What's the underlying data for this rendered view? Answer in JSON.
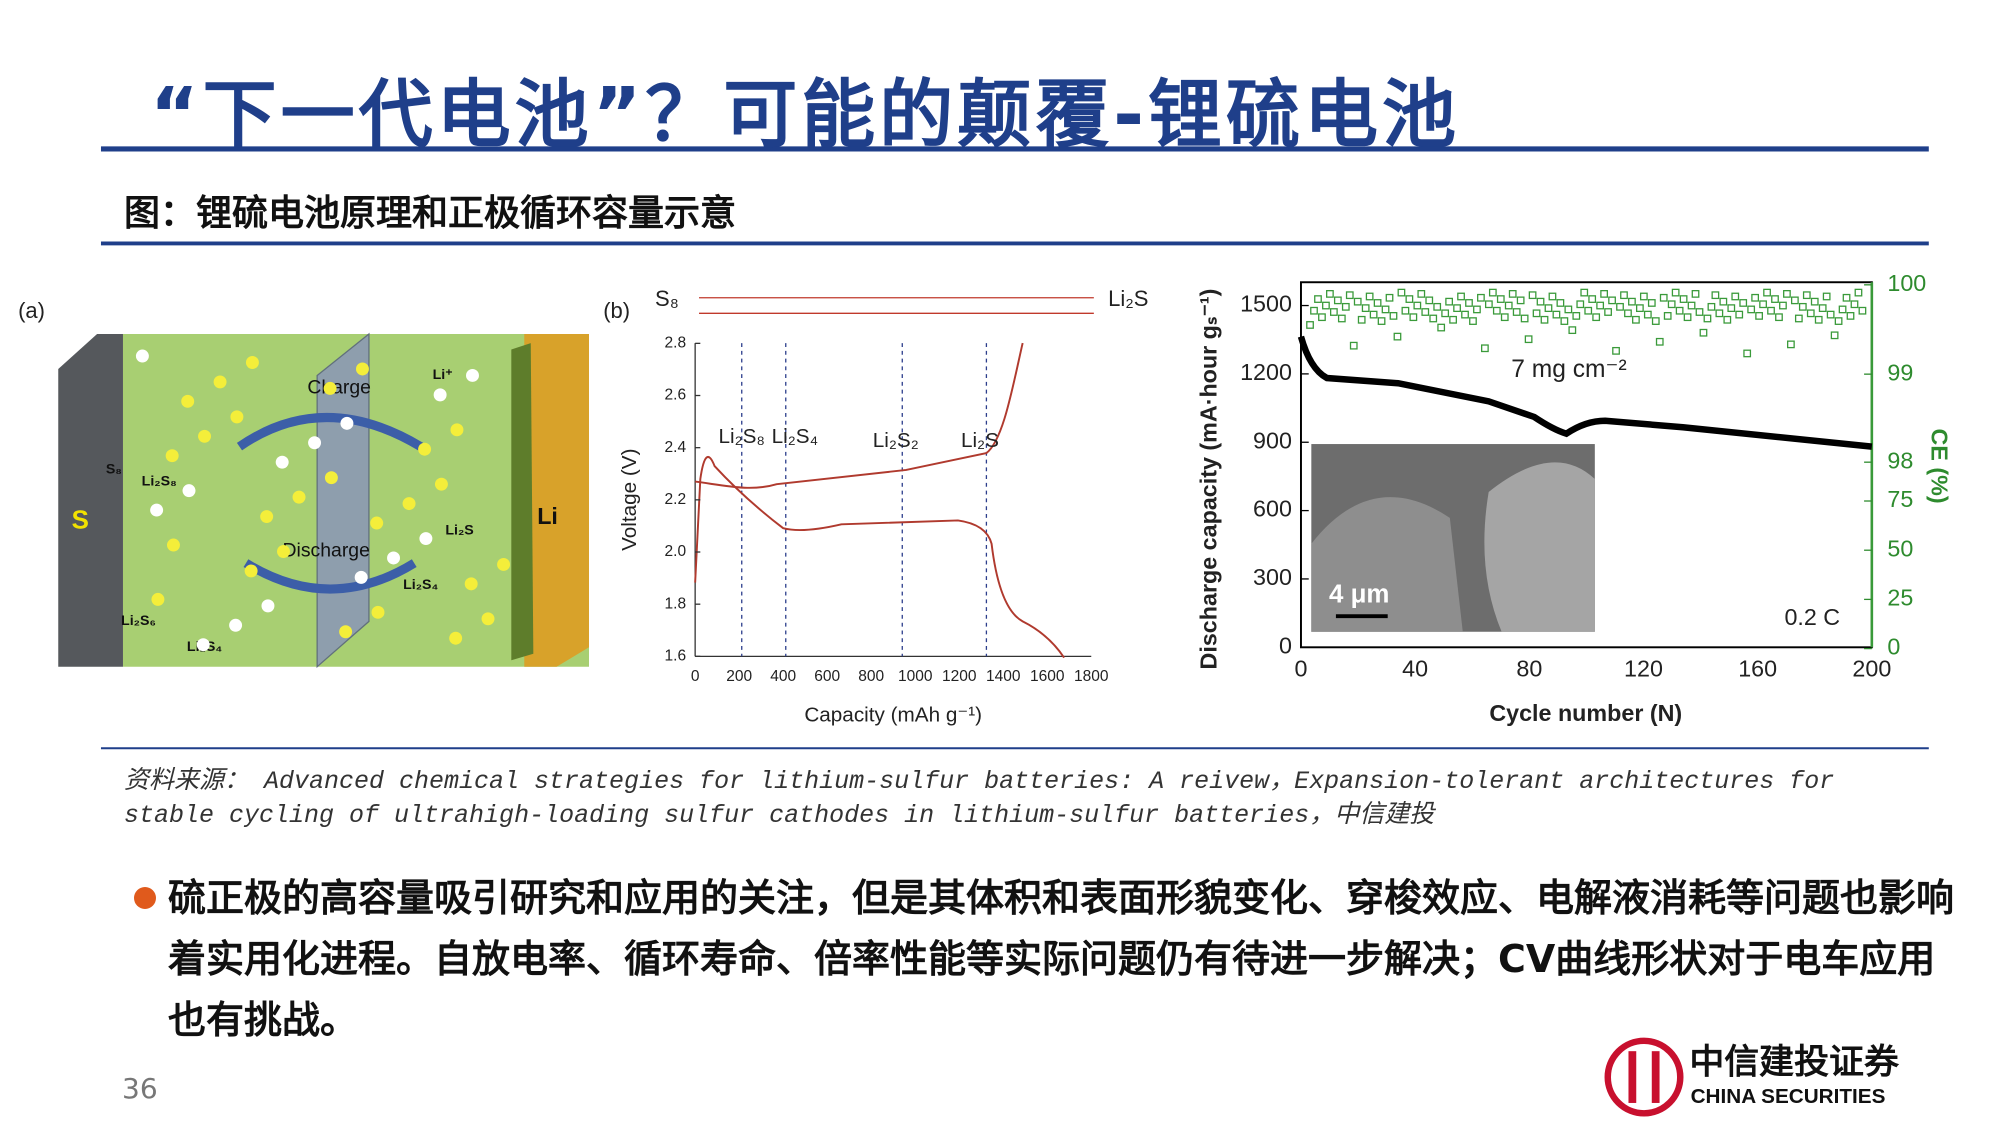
{
  "header": {
    "title": "“下一代电池”？可能的颠覆-锂硫电池",
    "subtitle": "图：锂硫电池原理和正极循环容量示意"
  },
  "figure": {
    "panel_a": {
      "label": "(a)",
      "labels": [
        "Charge",
        "Discharge",
        "S",
        "Li",
        "Li⁺",
        "S₈",
        "Li₂S₈",
        "Li₂S",
        "Li₂S₄",
        "Li₂S₆",
        "Li₂S₄"
      ]
    },
    "panel_b": {
      "label": "(b)",
      "top_left": "S₈",
      "top_right": "Li₂S",
      "yticks": [
        "1.6",
        "1.8",
        "2.0",
        "2.2",
        "2.4",
        "2.6",
        "2.8"
      ],
      "xticks": [
        "0",
        "200",
        "400",
        "600",
        "800",
        "1000",
        "1200",
        "1400",
        "1600",
        "1800"
      ],
      "ylabel": "Voltage (V)",
      "xlabel": "Capacity (mAh g⁻¹)",
      "annotations": [
        "Li₂S₈",
        "Li₂S₄",
        "Li₂S₂",
        "Li₂S"
      ]
    },
    "panel_c": {
      "yticks": [
        "0",
        "300",
        "600",
        "900",
        "1200",
        "1500"
      ],
      "y2ticks": [
        "0",
        "25",
        "50",
        "75",
        "98",
        "99",
        "100"
      ],
      "xticks": [
        "0",
        "40",
        "80",
        "120",
        "160",
        "200"
      ],
      "ylabel": "Discharge capacity (mA·hour gₛ⁻¹)",
      "y2label": "CE (%)",
      "xlabel": "Cycle number (N)",
      "annotations": [
        "7 mg cm⁻²",
        "0.2 C",
        "4 μm"
      ]
    }
  },
  "source": "资料来源： Advanced chemical strategies for lithium-sulfur batteries: A reivew，Expansion-tolerant architectures for stable cycling of ultrahigh-loading sulfur cathodes in lithium-sulfur batteries，中信建投",
  "bullet": "硫正极的高容量吸引研究和应用的关注，但是其体积和表面形貌变化、穿梭效应、电解液消耗等问题也影响着实用化进程。自放电率、循环寿命、倍率性能等实际问题仍有待进一步解决；CV曲线形状对于电车应用也有挑战。",
  "page_number": "36",
  "logo": {
    "name": "中信建投证券",
    "english": "CHINA SECURITIES"
  }
}
